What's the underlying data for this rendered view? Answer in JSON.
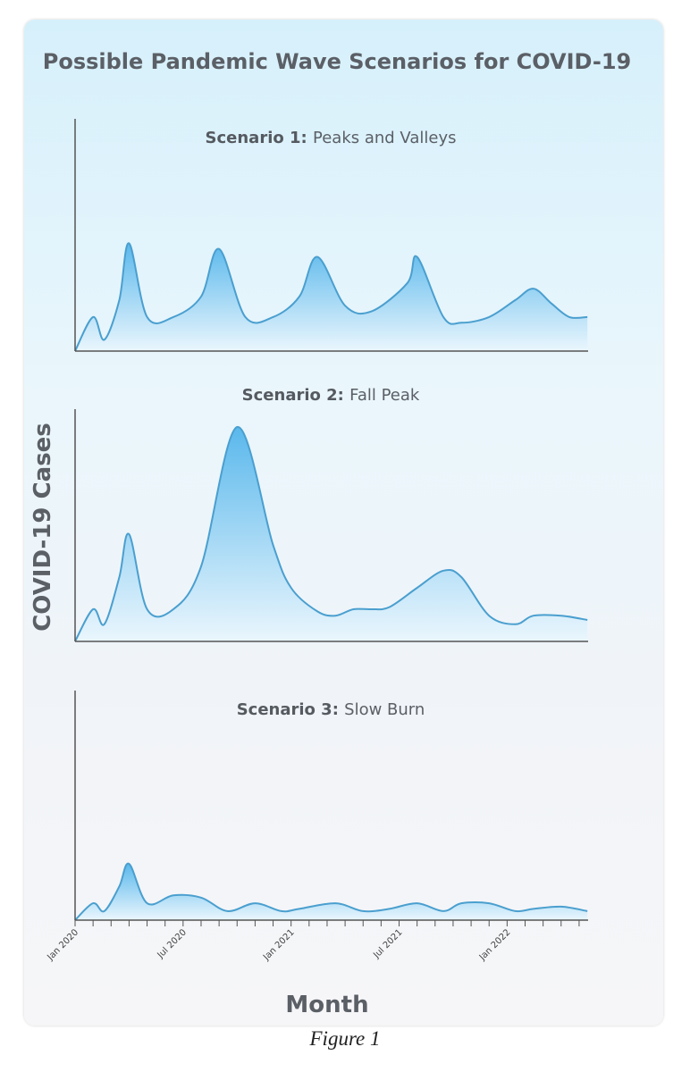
{
  "figure_caption": "Figure 1",
  "chart_data": {
    "type": "area",
    "title": "Possible Pandemic Wave Scenarios for COVID-19",
    "ylabel": "COVID-19 Cases",
    "xlabel": "Month",
    "x_ticks": [
      "Jan 2020",
      "Jul 2020",
      "Jan 2021",
      "Jul 2021",
      "Jan 2022"
    ],
    "x_range": [
      "2020-01",
      "2022-05"
    ],
    "colors": {
      "fill_top": "#5ab8ec",
      "fill_bottom": "#eaf6fd",
      "line": "#4a9fcf",
      "axis": "#555555"
    },
    "panels": [
      {
        "title_bold": "Scenario 1:",
        "title_normal": "Peaks and Valleys",
        "points": [
          [
            "2020-01-01",
            0
          ],
          [
            "2020-02-01",
            0.3
          ],
          [
            "2020-02-20",
            0.1
          ],
          [
            "2020-03-15",
            0.45
          ],
          [
            "2020-04-01",
            0.95
          ],
          [
            "2020-05-01",
            0.3
          ],
          [
            "2020-06-15",
            0.3
          ],
          [
            "2020-08-01",
            0.48
          ],
          [
            "2020-09-01",
            0.9
          ],
          [
            "2020-10-15",
            0.3
          ],
          [
            "2020-12-01",
            0.3
          ],
          [
            "2021-01-15",
            0.48
          ],
          [
            "2021-02-15",
            0.83
          ],
          [
            "2021-04-01",
            0.4
          ],
          [
            "2021-05-15",
            0.35
          ],
          [
            "2021-07-15",
            0.6
          ],
          [
            "2021-08-01",
            0.83
          ],
          [
            "2021-09-15",
            0.3
          ],
          [
            "2021-10-15",
            0.25
          ],
          [
            "2021-12-01",
            0.3
          ],
          [
            "2022-01-15",
            0.45
          ],
          [
            "2022-02-15",
            0.55
          ],
          [
            "2022-03-15",
            0.42
          ],
          [
            "2022-04-15",
            0.3
          ],
          [
            "2022-05-15",
            0.3
          ]
        ]
      },
      {
        "title_bold": "Scenario 2:",
        "title_normal": "Fall Peak",
        "points": [
          [
            "2020-01-01",
            0
          ],
          [
            "2020-02-01",
            0.15
          ],
          [
            "2020-02-20",
            0.08
          ],
          [
            "2020-03-15",
            0.3
          ],
          [
            "2020-04-01",
            0.5
          ],
          [
            "2020-05-01",
            0.15
          ],
          [
            "2020-06-15",
            0.15
          ],
          [
            "2020-08-01",
            0.35
          ],
          [
            "2020-10-01",
            1.0
          ],
          [
            "2020-12-01",
            0.45
          ],
          [
            "2021-01-01",
            0.25
          ],
          [
            "2021-02-15",
            0.14
          ],
          [
            "2021-03-15",
            0.12
          ],
          [
            "2021-04-15",
            0.15
          ],
          [
            "2021-05-15",
            0.15
          ],
          [
            "2021-06-15",
            0.16
          ],
          [
            "2021-08-01",
            0.25
          ],
          [
            "2021-09-15",
            0.33
          ],
          [
            "2021-10-15",
            0.3
          ],
          [
            "2021-12-01",
            0.12
          ],
          [
            "2022-01-15",
            0.08
          ],
          [
            "2022-02-15",
            0.12
          ],
          [
            "2022-04-01",
            0.12
          ],
          [
            "2022-05-15",
            0.1
          ]
        ]
      },
      {
        "title_bold": "Scenario 3:",
        "title_normal": "Slow Burn",
        "points": [
          [
            "2020-01-01",
            0
          ],
          [
            "2020-02-01",
            0.15
          ],
          [
            "2020-02-20",
            0.08
          ],
          [
            "2020-03-15",
            0.3
          ],
          [
            "2020-04-01",
            0.5
          ],
          [
            "2020-05-01",
            0.15
          ],
          [
            "2020-06-15",
            0.22
          ],
          [
            "2020-08-01",
            0.2
          ],
          [
            "2020-09-15",
            0.08
          ],
          [
            "2020-11-01",
            0.15
          ],
          [
            "2020-12-15",
            0.08
          ],
          [
            "2021-01-15",
            0.1
          ],
          [
            "2021-03-15",
            0.15
          ],
          [
            "2021-05-01",
            0.08
          ],
          [
            "2021-06-15",
            0.1
          ],
          [
            "2021-08-01",
            0.15
          ],
          [
            "2021-09-15",
            0.08
          ],
          [
            "2021-10-15",
            0.15
          ],
          [
            "2021-12-01",
            0.15
          ],
          [
            "2022-01-15",
            0.08
          ],
          [
            "2022-02-15",
            0.1
          ],
          [
            "2022-04-01",
            0.12
          ],
          [
            "2022-05-15",
            0.08
          ]
        ]
      }
    ]
  }
}
